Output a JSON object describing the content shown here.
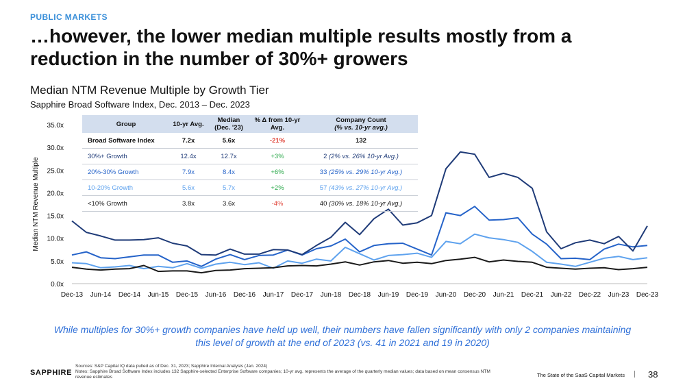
{
  "header": {
    "eyebrow": "PUBLIC MARKETS",
    "headline": "…however, the lower median multiple results mostly from a reduction in the number of 30%+ growers"
  },
  "chart": {
    "title": "Median NTM Revenue Multiple by Growth Tier",
    "subtitle": "Sapphire Broad Software Index, Dec. 2013 – Dec. 2023"
  },
  "table": {
    "headers": [
      "Group",
      "10-yr Avg.",
      "Median (Dec. '23)",
      "% Δ from 10-yr Avg.",
      "Company Count",
      "(% vs. 10-yr avg.)"
    ],
    "rows": [
      {
        "group": "Broad Software Index",
        "avg": "7.2x",
        "median": "5.6x",
        "delta": "-21%",
        "count": "132",
        "note": ""
      },
      {
        "group": "30%+ Growth",
        "avg": "12.4x",
        "median": "12.7x",
        "delta": "+3%",
        "count": "2",
        "note": "(2% vs. 26% 10-yr Avg.)"
      },
      {
        "group": "20%-30% Growth",
        "avg": "7.9x",
        "median": "8.4x",
        "delta": "+6%",
        "count": "33",
        "note": "(25% vs. 29% 10-yr Avg.)"
      },
      {
        "group": "10-20% Growth",
        "avg": "5.6x",
        "median": "5.7x",
        "delta": "+2%",
        "count": "57",
        "note": "(43% vs. 27% 10-yr Avg.)"
      },
      {
        "group": "<10% Growth",
        "avg": "3.8x",
        "median": "3.6x",
        "delta": "-4%",
        "count": "40",
        "note": "(30% vs. 18% 10-yr Avg.)"
      }
    ]
  },
  "summary": "While multiples for 30%+ growth companies have held up well, their numbers have fallen significantly with only 2 companies maintaining this level of growth at the end of 2023 (vs. 41 in 2021 and 19 in 2020)",
  "footer": {
    "logo": "SAPPHIRE",
    "source": "Sources: S&P Capital IQ data pulled as of Dec. 31, 2023; Sapphire Internal Analysis (Jan. 2024)",
    "notes": "Notes: Sapphire Broad Software Index includes 132 Sapphire-selected Enterprise Software companies; 10-yr avg. represents the average of the quarterly median values; data based on mean consensus NTM revenue estimates",
    "report": "The State of the SaaS Capital Markets",
    "page": "38"
  },
  "chart_data": {
    "type": "line",
    "title": "Median NTM Revenue Multiple by Growth Tier",
    "xlabel": "",
    "ylabel": "Median NTM Revenue Multiple",
    "ylim": [
      0,
      35
    ],
    "yticks": [
      "0.0x",
      "5.0x",
      "10.0x",
      "15.0x",
      "20.0x",
      "25.0x",
      "30.0x",
      "35.0x"
    ],
    "x": [
      "Dec-13",
      "Mar-14",
      "Jun-14",
      "Sep-14",
      "Dec-14",
      "Mar-15",
      "Jun-15",
      "Sep-15",
      "Dec-15",
      "Mar-16",
      "Jun-16",
      "Sep-16",
      "Dec-16",
      "Mar-17",
      "Jun-17",
      "Sep-17",
      "Dec-17",
      "Mar-18",
      "Jun-18",
      "Sep-18",
      "Dec-18",
      "Mar-19",
      "Jun-19",
      "Sep-19",
      "Dec-19",
      "Mar-20",
      "Jun-20",
      "Sep-20",
      "Dec-20",
      "Mar-21",
      "Jun-21",
      "Sep-21",
      "Dec-21",
      "Mar-22",
      "Jun-22",
      "Sep-22",
      "Dec-22",
      "Mar-23",
      "Jun-23",
      "Sep-23",
      "Dec-23"
    ],
    "xtick_labels": [
      "Dec-13",
      "Jun-14",
      "Dec-14",
      "Jun-15",
      "Dec-15",
      "Jun-16",
      "Dec-16",
      "Jun-17",
      "Dec-17",
      "Jun-18",
      "Dec-18",
      "Jun-19",
      "Dec-19",
      "Jun-20",
      "Dec-20",
      "Jun-21",
      "Dec-21",
      "Jun-22",
      "Dec-22",
      "Jun-23",
      "Dec-23"
    ],
    "series": [
      {
        "name": "30%+ Growth",
        "color": "#1f3b78",
        "values": [
          13.8,
          11.3,
          10.5,
          9.6,
          9.6,
          9.7,
          10.1,
          8.9,
          8.3,
          6.4,
          6.3,
          7.6,
          6.5,
          6.5,
          7.5,
          7.4,
          6.4,
          8.4,
          10.2,
          13.5,
          10.8,
          14.3,
          16.4,
          12.9,
          13.4,
          15.0,
          25.3,
          29.0,
          28.5,
          23.4,
          24.3,
          23.4,
          21.0,
          11.4,
          7.7,
          9.0,
          9.6,
          8.8,
          10.4,
          7.2,
          12.7
        ]
      },
      {
        "name": "20%-30% Growth",
        "color": "#2563c9",
        "values": [
          6.3,
          7.0,
          5.7,
          5.5,
          5.9,
          6.3,
          6.3,
          4.7,
          5.0,
          3.8,
          5.4,
          6.4,
          5.3,
          6.2,
          6.3,
          7.4,
          6.3,
          7.7,
          8.3,
          9.8,
          7.0,
          8.4,
          8.8,
          8.9,
          7.6,
          6.3,
          15.6,
          15.0,
          17.0,
          14.0,
          14.1,
          14.5,
          10.9,
          8.7,
          5.5,
          5.6,
          5.3,
          7.6,
          8.7,
          8.1,
          8.4
        ]
      },
      {
        "name": "10-20% Growth",
        "color": "#5ea2ee",
        "values": [
          4.6,
          4.4,
          3.5,
          3.7,
          4.0,
          3.3,
          3.8,
          3.5,
          4.4,
          3.4,
          4.3,
          4.7,
          4.2,
          4.6,
          3.4,
          5.0,
          4.5,
          5.4,
          5.0,
          8.0,
          6.6,
          5.2,
          6.2,
          6.4,
          6.7,
          5.8,
          9.3,
          8.8,
          10.9,
          10.1,
          9.7,
          9.1,
          7.1,
          4.7,
          4.3,
          3.8,
          4.7,
          5.6,
          6.0,
          5.3,
          5.7
        ]
      },
      {
        "name": "<10% Growth",
        "color": "#1a1a1a",
        "values": [
          3.6,
          3.2,
          3.0,
          3.2,
          3.3,
          4.0,
          2.7,
          2.8,
          2.8,
          2.4,
          2.9,
          3.0,
          3.3,
          3.4,
          3.5,
          3.9,
          4.0,
          3.9,
          4.3,
          4.8,
          4.1,
          4.8,
          5.1,
          4.5,
          4.7,
          4.4,
          5.1,
          5.4,
          5.8,
          4.8,
          5.2,
          4.9,
          4.7,
          3.6,
          3.4,
          3.2,
          3.4,
          3.5,
          3.1,
          3.3,
          3.6
        ]
      }
    ]
  }
}
